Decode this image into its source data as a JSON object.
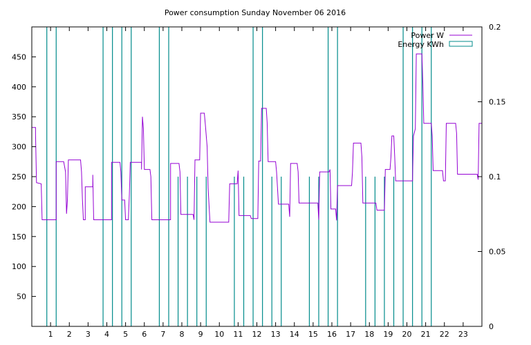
{
  "chart_data": {
    "type": "line",
    "title": "Power consumption Sunday November 06 2016",
    "xlabel": "",
    "ylabel": "",
    "x_ticks": [
      1,
      2,
      3,
      4,
      5,
      6,
      7,
      8,
      9,
      10,
      11,
      12,
      13,
      14,
      15,
      16,
      17,
      18,
      19,
      20,
      21,
      22,
      23
    ],
    "xlim": [
      0,
      24
    ],
    "ylim": [
      0,
      500
    ],
    "y_ticks": [
      50,
      100,
      150,
      200,
      250,
      300,
      350,
      400,
      450
    ],
    "y2lim": [
      0,
      0.2
    ],
    "y2_ticks": [
      "0",
      "0.05",
      "0.1",
      "0.15",
      "0.2"
    ],
    "y2_tick_values": [
      0,
      0.05,
      0.1,
      0.15,
      0.2
    ],
    "grid": false,
    "legend_position": "top-right",
    "series": [
      {
        "name": "Power W",
        "axis": "y1",
        "color": "#9400d3",
        "style": "line",
        "points": [
          [
            0,
            332
          ],
          [
            0.2,
            332
          ],
          [
            0.2,
            320
          ],
          [
            0.25,
            240
          ],
          [
            0.5,
            238
          ],
          [
            0.55,
            178
          ],
          [
            1.3,
            178
          ],
          [
            1.3,
            275
          ],
          [
            1.7,
            275
          ],
          [
            1.8,
            258
          ],
          [
            1.85,
            188
          ],
          [
            1.9,
            210
          ],
          [
            1.95,
            278
          ],
          [
            2.6,
            278
          ],
          [
            2.65,
            258
          ],
          [
            2.7,
            212
          ],
          [
            2.75,
            178
          ],
          [
            2.85,
            178
          ],
          [
            2.85,
            233
          ],
          [
            3.25,
            233
          ],
          [
            3.25,
            253
          ],
          [
            3.3,
            178
          ],
          [
            4.25,
            178
          ],
          [
            4.25,
            274
          ],
          [
            4.7,
            274
          ],
          [
            4.75,
            258
          ],
          [
            4.8,
            211
          ],
          [
            4.95,
            211
          ],
          [
            5.0,
            178
          ],
          [
            5.15,
            178
          ],
          [
            5.2,
            220
          ],
          [
            5.25,
            274
          ],
          [
            5.85,
            274
          ],
          [
            5.85,
            262
          ],
          [
            5.9,
            350
          ],
          [
            5.95,
            330
          ],
          [
            6.0,
            262
          ],
          [
            6.3,
            262
          ],
          [
            6.35,
            250
          ],
          [
            6.4,
            178
          ],
          [
            7.4,
            178
          ],
          [
            7.4,
            272
          ],
          [
            7.85,
            272
          ],
          [
            7.9,
            258
          ],
          [
            7.95,
            187
          ],
          [
            8.6,
            187
          ],
          [
            8.65,
            178
          ],
          [
            8.7,
            278
          ],
          [
            8.95,
            278
          ],
          [
            9.0,
            356
          ],
          [
            9.2,
            356
          ],
          [
            9.25,
            338
          ],
          [
            9.35,
            300
          ],
          [
            9.4,
            231
          ],
          [
            9.5,
            174
          ],
          [
            10.5,
            174
          ],
          [
            10.55,
            238
          ],
          [
            10.95,
            238
          ],
          [
            11.0,
            260
          ],
          [
            11.05,
            185
          ],
          [
            11.65,
            185
          ],
          [
            11.7,
            180
          ],
          [
            12.05,
            180
          ],
          [
            12.1,
            276
          ],
          [
            12.2,
            276
          ],
          [
            12.25,
            364
          ],
          [
            12.5,
            364
          ],
          [
            12.55,
            340
          ],
          [
            12.6,
            275
          ],
          [
            13.0,
            275
          ],
          [
            13.05,
            258
          ],
          [
            13.15,
            204
          ],
          [
            13.7,
            204
          ],
          [
            13.75,
            183
          ],
          [
            13.8,
            272
          ],
          [
            14.15,
            272
          ],
          [
            14.2,
            258
          ],
          [
            14.25,
            206
          ],
          [
            15.25,
            206
          ],
          [
            15.3,
            178
          ],
          [
            15.35,
            258
          ],
          [
            15.85,
            258
          ],
          [
            15.9,
            262
          ],
          [
            15.95,
            196
          ],
          [
            16.2,
            196
          ],
          [
            16.25,
            177
          ],
          [
            16.3,
            235
          ],
          [
            17.05,
            235
          ],
          [
            17.1,
            258
          ],
          [
            17.15,
            306
          ],
          [
            17.55,
            306
          ],
          [
            17.6,
            283
          ],
          [
            17.65,
            206
          ],
          [
            18.35,
            206
          ],
          [
            18.4,
            194
          ],
          [
            18.8,
            194
          ],
          [
            18.85,
            262
          ],
          [
            19.1,
            262
          ],
          [
            19.15,
            282
          ],
          [
            19.2,
            318
          ],
          [
            19.3,
            318
          ],
          [
            19.35,
            283
          ],
          [
            19.4,
            243
          ],
          [
            20.3,
            243
          ],
          [
            20.35,
            318
          ],
          [
            20.45,
            330
          ],
          [
            20.5,
            455
          ],
          [
            20.8,
            455
          ],
          [
            20.85,
            405
          ],
          [
            20.9,
            339
          ],
          [
            21.3,
            339
          ],
          [
            21.35,
            318
          ],
          [
            21.4,
            260
          ],
          [
            21.9,
            260
          ],
          [
            21.95,
            243
          ],
          [
            22.05,
            243
          ],
          [
            22.1,
            339
          ],
          [
            22.6,
            339
          ],
          [
            22.65,
            322
          ],
          [
            22.7,
            254
          ],
          [
            23.75,
            254
          ],
          [
            23.8,
            245
          ],
          [
            23.85,
            339
          ],
          [
            24.0,
            339
          ]
        ]
      },
      {
        "name": "Energy KWh",
        "axis": "y2",
        "color": "#008b8b",
        "style": "impulse",
        "points": [
          [
            0.8,
            0.2
          ],
          [
            1.3,
            0.2
          ],
          [
            3.8,
            0.2
          ],
          [
            4.3,
            0.2
          ],
          [
            4.8,
            0.2
          ],
          [
            5.3,
            0.2
          ],
          [
            6.8,
            0.2
          ],
          [
            7.3,
            0.2
          ],
          [
            7.8,
            0.1
          ],
          [
            8.3,
            0.1
          ],
          [
            8.8,
            0.1
          ],
          [
            9.3,
            0.1
          ],
          [
            10.8,
            0.1
          ],
          [
            11.3,
            0.1
          ],
          [
            11.8,
            0.2
          ],
          [
            12.3,
            0.2
          ],
          [
            12.8,
            0.1
          ],
          [
            13.3,
            0.1
          ],
          [
            14.8,
            0.1
          ],
          [
            15.3,
            0.1
          ],
          [
            15.8,
            0.2
          ],
          [
            16.3,
            0.2
          ],
          [
            17.8,
            0.1
          ],
          [
            18.3,
            0.1
          ],
          [
            18.8,
            0.1
          ],
          [
            19.3,
            0.1
          ],
          [
            19.8,
            0.2
          ],
          [
            20.3,
            0.2
          ],
          [
            20.8,
            0.2
          ],
          [
            21.3,
            0.2
          ]
        ]
      }
    ]
  }
}
